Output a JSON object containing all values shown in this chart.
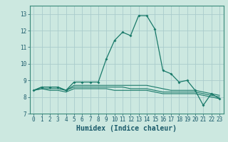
{
  "title": "",
  "xlabel": "Humidex (Indice chaleur)",
  "ylabel": "",
  "background_color": "#cce8e0",
  "grid_color": "#aacccc",
  "line_color": "#1a7a6a",
  "x": [
    0,
    1,
    2,
    3,
    4,
    5,
    6,
    7,
    8,
    9,
    10,
    11,
    12,
    13,
    14,
    15,
    16,
    17,
    18,
    19,
    20,
    21,
    22,
    23
  ],
  "series1": [
    8.4,
    8.6,
    8.6,
    8.6,
    8.4,
    8.9,
    8.9,
    8.9,
    8.9,
    10.3,
    11.4,
    11.9,
    11.7,
    12.9,
    12.9,
    12.1,
    9.6,
    9.4,
    8.9,
    9.0,
    8.4,
    7.5,
    8.2,
    7.9
  ],
  "series2": [
    8.4,
    8.6,
    8.6,
    8.6,
    8.4,
    8.7,
    8.7,
    8.7,
    8.7,
    8.7,
    8.7,
    8.7,
    8.7,
    8.7,
    8.7,
    8.6,
    8.5,
    8.4,
    8.4,
    8.4,
    8.4,
    8.3,
    8.2,
    8.1
  ],
  "series3": [
    8.4,
    8.5,
    8.5,
    8.5,
    8.4,
    8.6,
    8.6,
    8.6,
    8.6,
    8.6,
    8.6,
    8.6,
    8.5,
    8.5,
    8.5,
    8.4,
    8.3,
    8.3,
    8.3,
    8.3,
    8.3,
    8.2,
    8.1,
    8.0
  ],
  "series4": [
    8.4,
    8.5,
    8.4,
    8.4,
    8.3,
    8.5,
    8.5,
    8.5,
    8.5,
    8.5,
    8.4,
    8.4,
    8.4,
    8.4,
    8.4,
    8.3,
    8.2,
    8.2,
    8.2,
    8.2,
    8.2,
    8.1,
    8.0,
    7.9
  ],
  "ylim": [
    7,
    13.5
  ],
  "xlim": [
    -0.5,
    23.5
  ],
  "yticks": [
    7,
    8,
    9,
    10,
    11,
    12,
    13
  ],
  "xticks": [
    0,
    1,
    2,
    3,
    4,
    5,
    6,
    7,
    8,
    9,
    10,
    11,
    12,
    13,
    14,
    15,
    16,
    17,
    18,
    19,
    20,
    21,
    22,
    23
  ],
  "tick_fontsize": 5.5,
  "xlabel_fontsize": 7.0,
  "xlabel_color": "#1a5a6a"
}
